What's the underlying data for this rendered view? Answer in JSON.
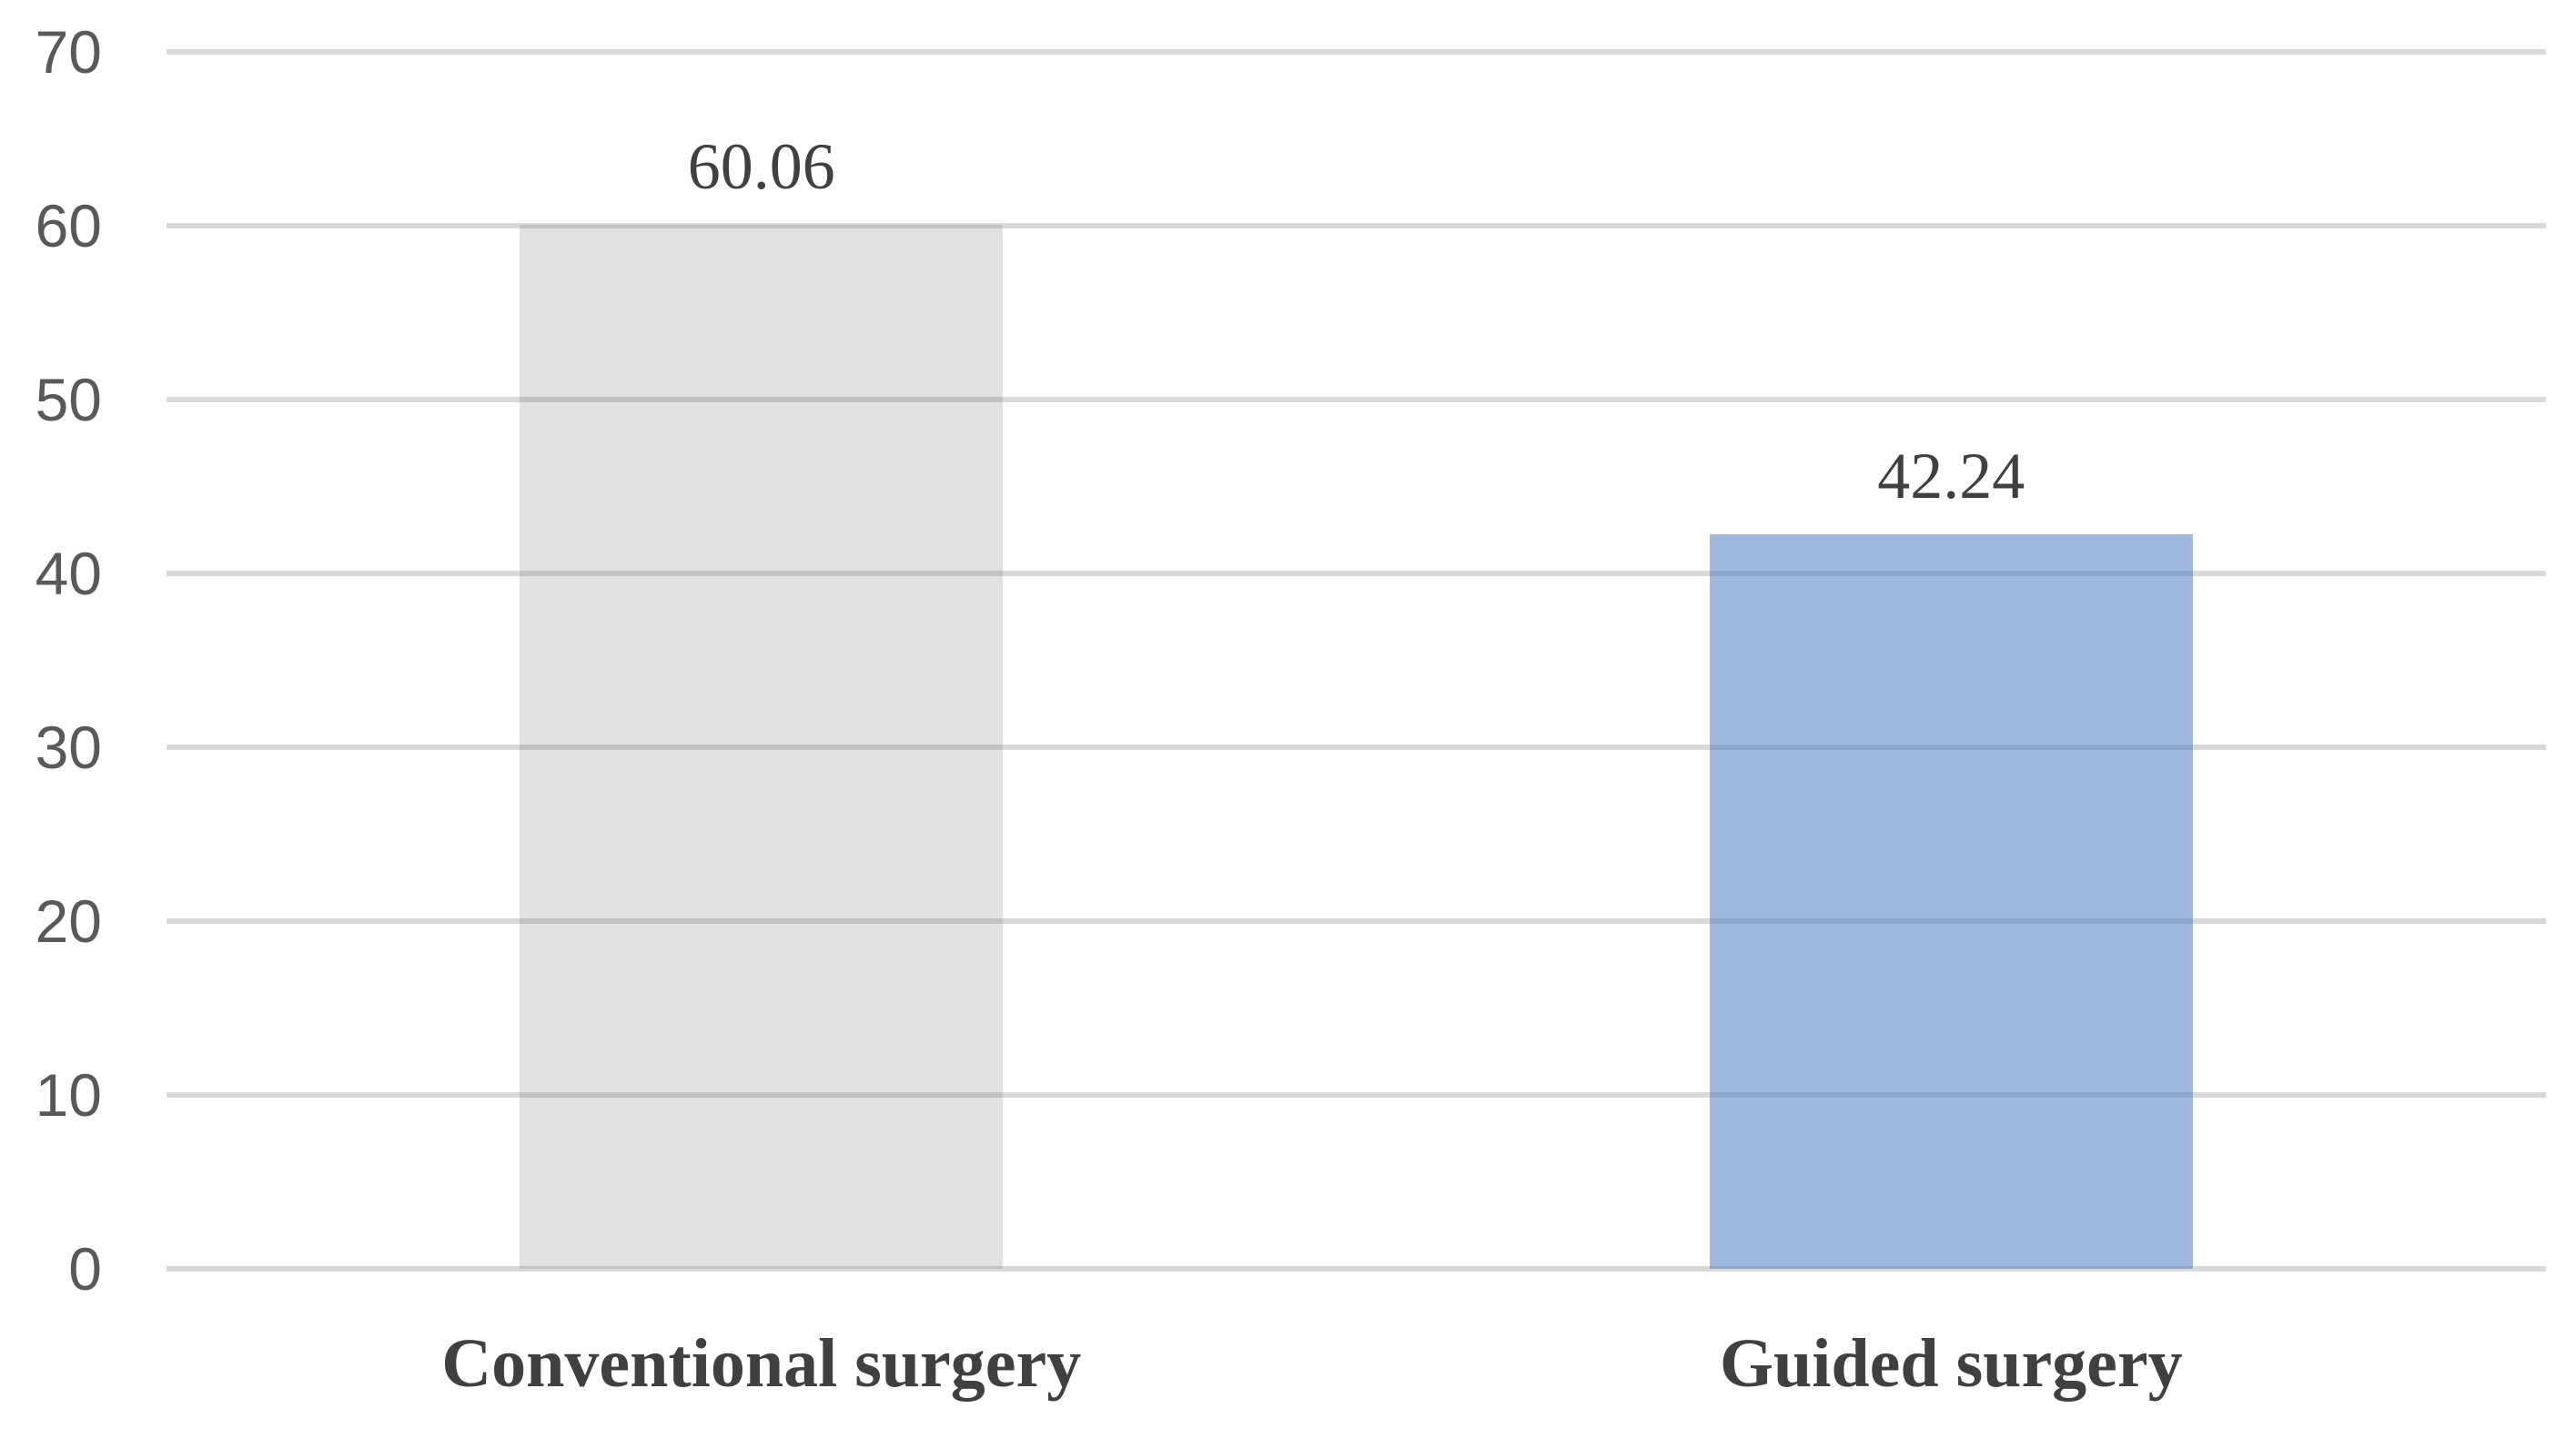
{
  "chart_data": {
    "type": "bar",
    "title": "",
    "xlabel": "",
    "ylabel": "",
    "categories": [
      "Conventional surgery",
      "Guided surgery"
    ],
    "values": [
      60.06,
      42.24
    ],
    "data_labels": [
      "60.06",
      "42.24"
    ],
    "bar_fills": [
      {
        "observed_hex": "#E0E0E0",
        "rgba": "rgba(89,89,89,0.18)"
      },
      {
        "observed_hex": "#A2B8E0",
        "rgba": "rgba(68,114,196,0.5)"
      }
    ],
    "ylim": [
      0,
      70
    ],
    "yticks": [
      0,
      10,
      20,
      30,
      40,
      50,
      60,
      70
    ],
    "grid": true,
    "legend": false,
    "colors": {
      "background": "#FFFFFF",
      "gridline": "#D9D9D9",
      "tick_label_text": "#595959",
      "data_label_text": "#404040",
      "category_label_text": "#404040"
    }
  }
}
